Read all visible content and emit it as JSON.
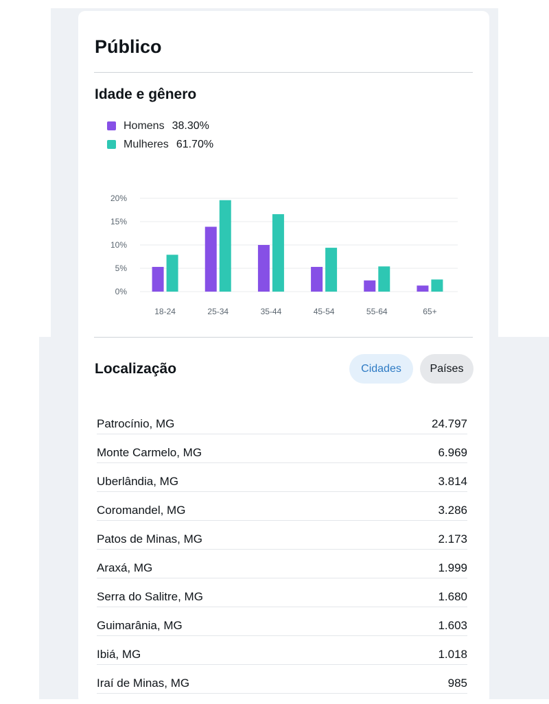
{
  "header": {
    "title": "Público"
  },
  "age_gender": {
    "title": "Idade e gênero",
    "legend": [
      {
        "name": "Homens",
        "value": "38.30%",
        "color": "#8650e6"
      },
      {
        "name": "Mulheres",
        "value": "61.70%",
        "color": "#2ec7b3"
      }
    ]
  },
  "chart_data": {
    "type": "bar",
    "categories": [
      "18-24",
      "25-34",
      "35-44",
      "45-54",
      "55-64",
      "65+"
    ],
    "series": [
      {
        "name": "Homens",
        "color": "#8650e6",
        "values": [
          5.3,
          13.9,
          10.0,
          5.3,
          2.4,
          1.3
        ]
      },
      {
        "name": "Mulheres",
        "color": "#2ec7b3",
        "values": [
          7.9,
          19.6,
          16.6,
          9.4,
          5.4,
          2.6
        ]
      }
    ],
    "yticks": [
      "0%",
      "5%",
      "10%",
      "15%",
      "20%"
    ],
    "ylim": [
      0,
      20
    ],
    "grid": true
  },
  "location": {
    "title": "Localização",
    "tabs": {
      "cities": "Cidades",
      "countries": "Países"
    },
    "rows": [
      {
        "name": "Patrocínio, MG",
        "value": "24.797"
      },
      {
        "name": "Monte Carmelo, MG",
        "value": "6.969"
      },
      {
        "name": "Uberlândia, MG",
        "value": "3.814"
      },
      {
        "name": "Coromandel, MG",
        "value": "3.286"
      },
      {
        "name": "Patos de Minas, MG",
        "value": "2.173"
      },
      {
        "name": "Araxá, MG",
        "value": "1.999"
      },
      {
        "name": "Serra do Salitre, MG",
        "value": "1.680"
      },
      {
        "name": "Guimarânia, MG",
        "value": "1.603"
      },
      {
        "name": "Ibiá, MG",
        "value": "1.018"
      },
      {
        "name": "Iraí de Minas, MG",
        "value": "985"
      }
    ]
  }
}
